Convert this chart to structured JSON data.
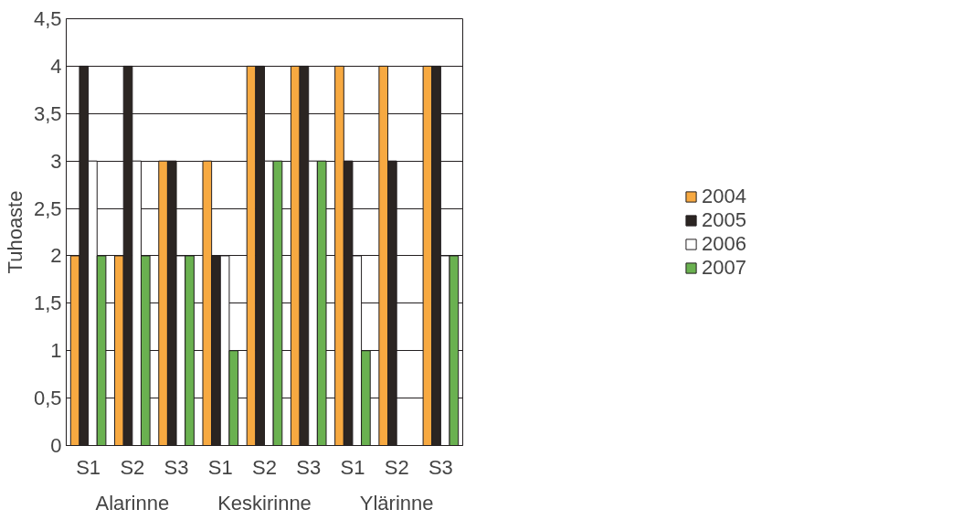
{
  "chart_data": {
    "type": "bar",
    "ylabel": "Tuhoaste",
    "categories": [
      "S1",
      "S2",
      "S3",
      "S1",
      "S2",
      "S3",
      "S1",
      "S2",
      "S3"
    ],
    "annotations": [
      "Alarinne",
      "Keskirinne",
      "Ylärinne"
    ],
    "series": [
      {
        "name": "2004",
        "color": "#f7a941",
        "values": [
          2,
          2,
          3,
          3,
          4,
          4,
          4,
          4,
          4
        ]
      },
      {
        "name": "2005",
        "color": "#2b2522",
        "values": [
          4,
          4,
          3,
          2,
          4,
          4,
          3,
          3,
          4
        ]
      },
      {
        "name": "2006",
        "color": "#ffffff",
        "values": [
          3,
          3,
          2,
          2,
          3,
          3,
          2,
          null,
          2
        ]
      },
      {
        "name": "2007",
        "color": "#6ab150",
        "values": [
          2,
          2,
          2,
          1,
          3,
          3,
          1,
          null,
          2
        ]
      }
    ],
    "ylim": [
      0,
      4.5
    ],
    "yticks": [
      0,
      {
        "value": 0.5,
        "label": "0,5"
      },
      1,
      {
        "value": 1.5,
        "label": "1,5"
      },
      2,
      {
        "value": 2.5,
        "label": "2,5"
      },
      3,
      {
        "value": 3.5,
        "label": "3,5"
      },
      4,
      {
        "value": 4.5,
        "label": "4,5"
      }
    ],
    "grid": "y",
    "legend": "right"
  }
}
